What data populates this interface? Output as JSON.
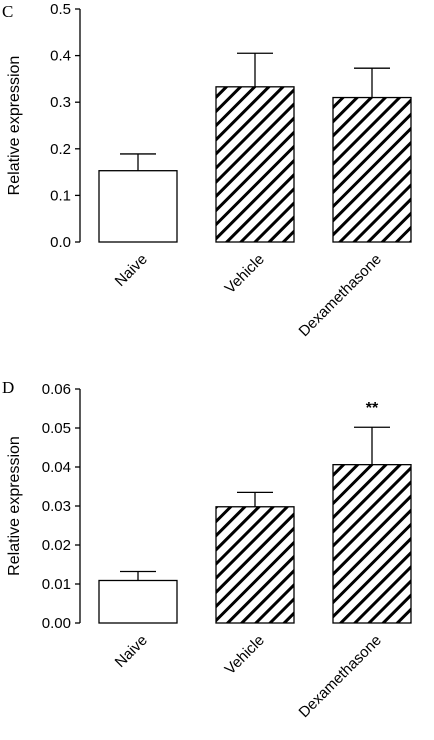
{
  "chart_data": [
    {
      "panel": "C",
      "type": "bar",
      "ylabel": "Relative expression",
      "ylim": [
        0,
        0.5
      ],
      "yticks": [
        "0.0",
        "0.1",
        "0.2",
        "0.3",
        "0.4",
        "0.5"
      ],
      "categories": [
        "Naive",
        "Vehicle",
        "Dexamethasone"
      ],
      "values": [
        0.153,
        0.333,
        0.31
      ],
      "errors": [
        0.036,
        0.072,
        0.063
      ],
      "fills": [
        "white",
        "hatched",
        "hatched"
      ],
      "annotations": [
        "",
        "",
        ""
      ]
    },
    {
      "panel": "D",
      "type": "bar",
      "ylabel": "Relative expression",
      "ylim": [
        0,
        0.06
      ],
      "yticks": [
        "0.00",
        "0.01",
        "0.02",
        "0.03",
        "0.04",
        "0.05",
        "0.06"
      ],
      "categories": [
        "Naive",
        "Vehicle",
        "Dexamethasone"
      ],
      "values": [
        0.0109,
        0.0298,
        0.0406
      ],
      "errors": [
        0.0023,
        0.0037,
        0.0096
      ],
      "fills": [
        "white",
        "hatched",
        "hatched"
      ],
      "annotations": [
        "",
        "",
        "**"
      ]
    }
  ]
}
